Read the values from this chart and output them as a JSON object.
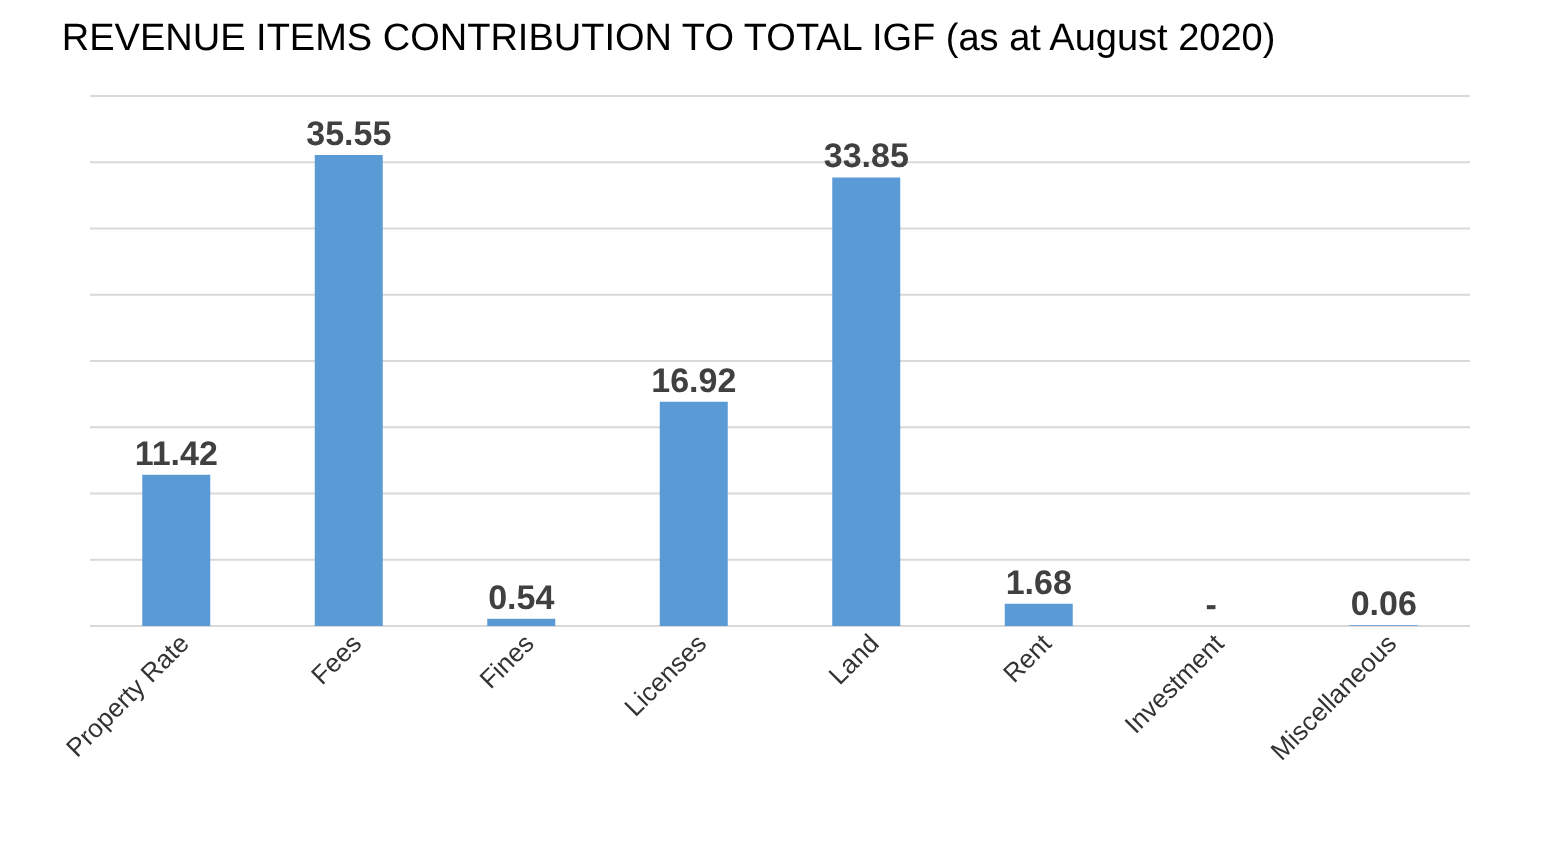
{
  "chart_data": {
    "type": "bar",
    "title": "REVENUE ITEMS CONTRIBUTION TO TOTAL IGF (as at August 2020)",
    "categories": [
      "Property Rate",
      "Fees",
      "Fines",
      "Licenses",
      "Land",
      "Rent",
      "Investment",
      "Miscellaneous"
    ],
    "values": [
      11.42,
      35.55,
      0.54,
      16.92,
      33.85,
      1.68,
      0,
      0.06
    ],
    "value_labels": [
      "11.42",
      "35.55",
      "0.54",
      "16.92",
      "33.85",
      "1.68",
      "-",
      "0.06"
    ],
    "color": "#5b9bd5",
    "ylim": [
      0,
      40
    ],
    "yticks": [
      {
        "value": 0,
        "label": null
      },
      {
        "value": 5,
        "label": null
      },
      {
        "value": 10,
        "label": null
      },
      {
        "value": 15,
        "label": null
      },
      {
        "value": 20,
        "label": null
      },
      {
        "value": 25,
        "label": null
      },
      {
        "value": 30,
        "label": null
      },
      {
        "value": 35,
        "label": null
      },
      {
        "value": 40,
        "label": null
      }
    ],
    "grid": "y"
  }
}
